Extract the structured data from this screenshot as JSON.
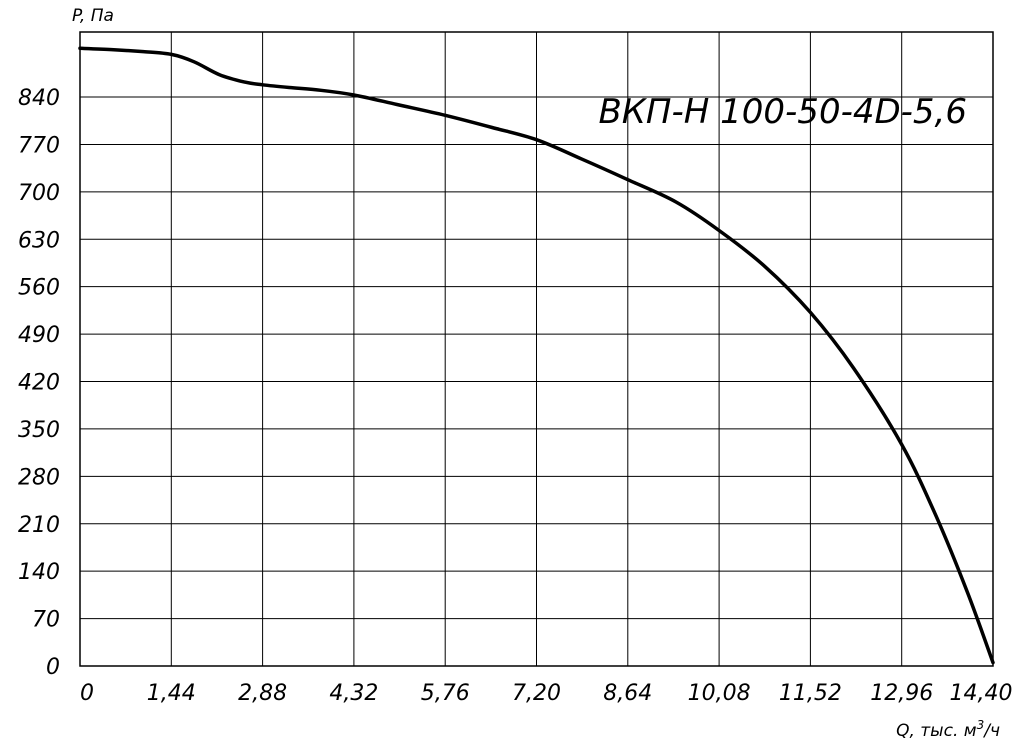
{
  "chart_data": {
    "type": "line",
    "title": "ВКП-Н 100-50-4D-5,6",
    "xlabel": "Q, тыс. м³/ч",
    "xlabel_main": "Q, тыс. м",
    "xlabel_sup": "3",
    "xlabel_tail": "/ч",
    "ylabel": "P, Па",
    "xlim": [
      0,
      14.4
    ],
    "ylim": [
      0,
      936
    ],
    "x_ticks": [
      0,
      1.44,
      2.88,
      4.32,
      5.76,
      7.2,
      8.64,
      10.08,
      11.52,
      12.96,
      14.4
    ],
    "x_tick_labels": [
      "0",
      "1,44",
      "2,88",
      "4,32",
      "5,76",
      "7,20",
      "8,64",
      "10,08",
      "11,52",
      "12,96",
      "14,40"
    ],
    "y_ticks": [
      0,
      70,
      140,
      210,
      280,
      350,
      420,
      490,
      560,
      630,
      700,
      770,
      840
    ],
    "y_tick_labels": [
      "0",
      "70",
      "140",
      "210",
      "280",
      "350",
      "420",
      "490",
      "560",
      "630",
      "700",
      "770",
      "840"
    ],
    "grid": true,
    "series": [
      {
        "x": [
          0,
          0.5,
          1.0,
          1.44,
          1.8,
          2.2,
          2.6,
          2.88,
          3.3,
          3.8,
          4.32,
          5.0,
          5.76,
          6.5,
          7.2,
          7.9,
          8.64,
          9.4,
          10.08,
          10.8,
          11.52,
          12.2,
          12.96,
          13.5,
          14.0,
          14.4
        ],
        "y": [
          912,
          910,
          907,
          903,
          892,
          873,
          862,
          858,
          854,
          850,
          843,
          829,
          813,
          795,
          777,
          749,
          718,
          685,
          643,
          590,
          522,
          440,
          327,
          222,
          108,
          5
        ]
      }
    ]
  }
}
